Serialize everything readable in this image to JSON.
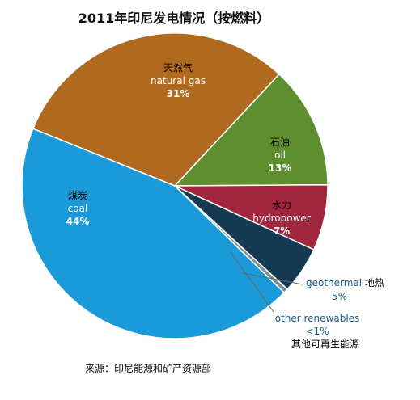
{
  "chart_data": {
    "type": "pie",
    "title": "2011年印尼发电情况（按燃料）",
    "source": "来源：印尼能源和矿产资源部",
    "slices": [
      {
        "label_zh": "天然气",
        "label_en": "natural gas",
        "value": 31,
        "value_label": "31%",
        "color": "#B06A20"
      },
      {
        "label_zh": "石油",
        "label_en": "oil",
        "value": 13,
        "value_label": "13%",
        "color": "#5E8E2E"
      },
      {
        "label_zh": "水力",
        "label_en": "hydropower",
        "value": 7,
        "value_label": "7%",
        "color": "#A3263F"
      },
      {
        "label_zh": "地热",
        "label_en": "geothermal",
        "value": 5,
        "value_label": "5%",
        "color": "#163A52"
      },
      {
        "label_zh": "其他可再生能源",
        "label_en": "other renewables",
        "value": 0.5,
        "value_label": "<1%",
        "color": "#7F8C8D"
      },
      {
        "label_zh": "煤炭",
        "label_en": "coal",
        "value": 44,
        "value_label": "44%",
        "color": "#1A9AD8"
      }
    ]
  }
}
